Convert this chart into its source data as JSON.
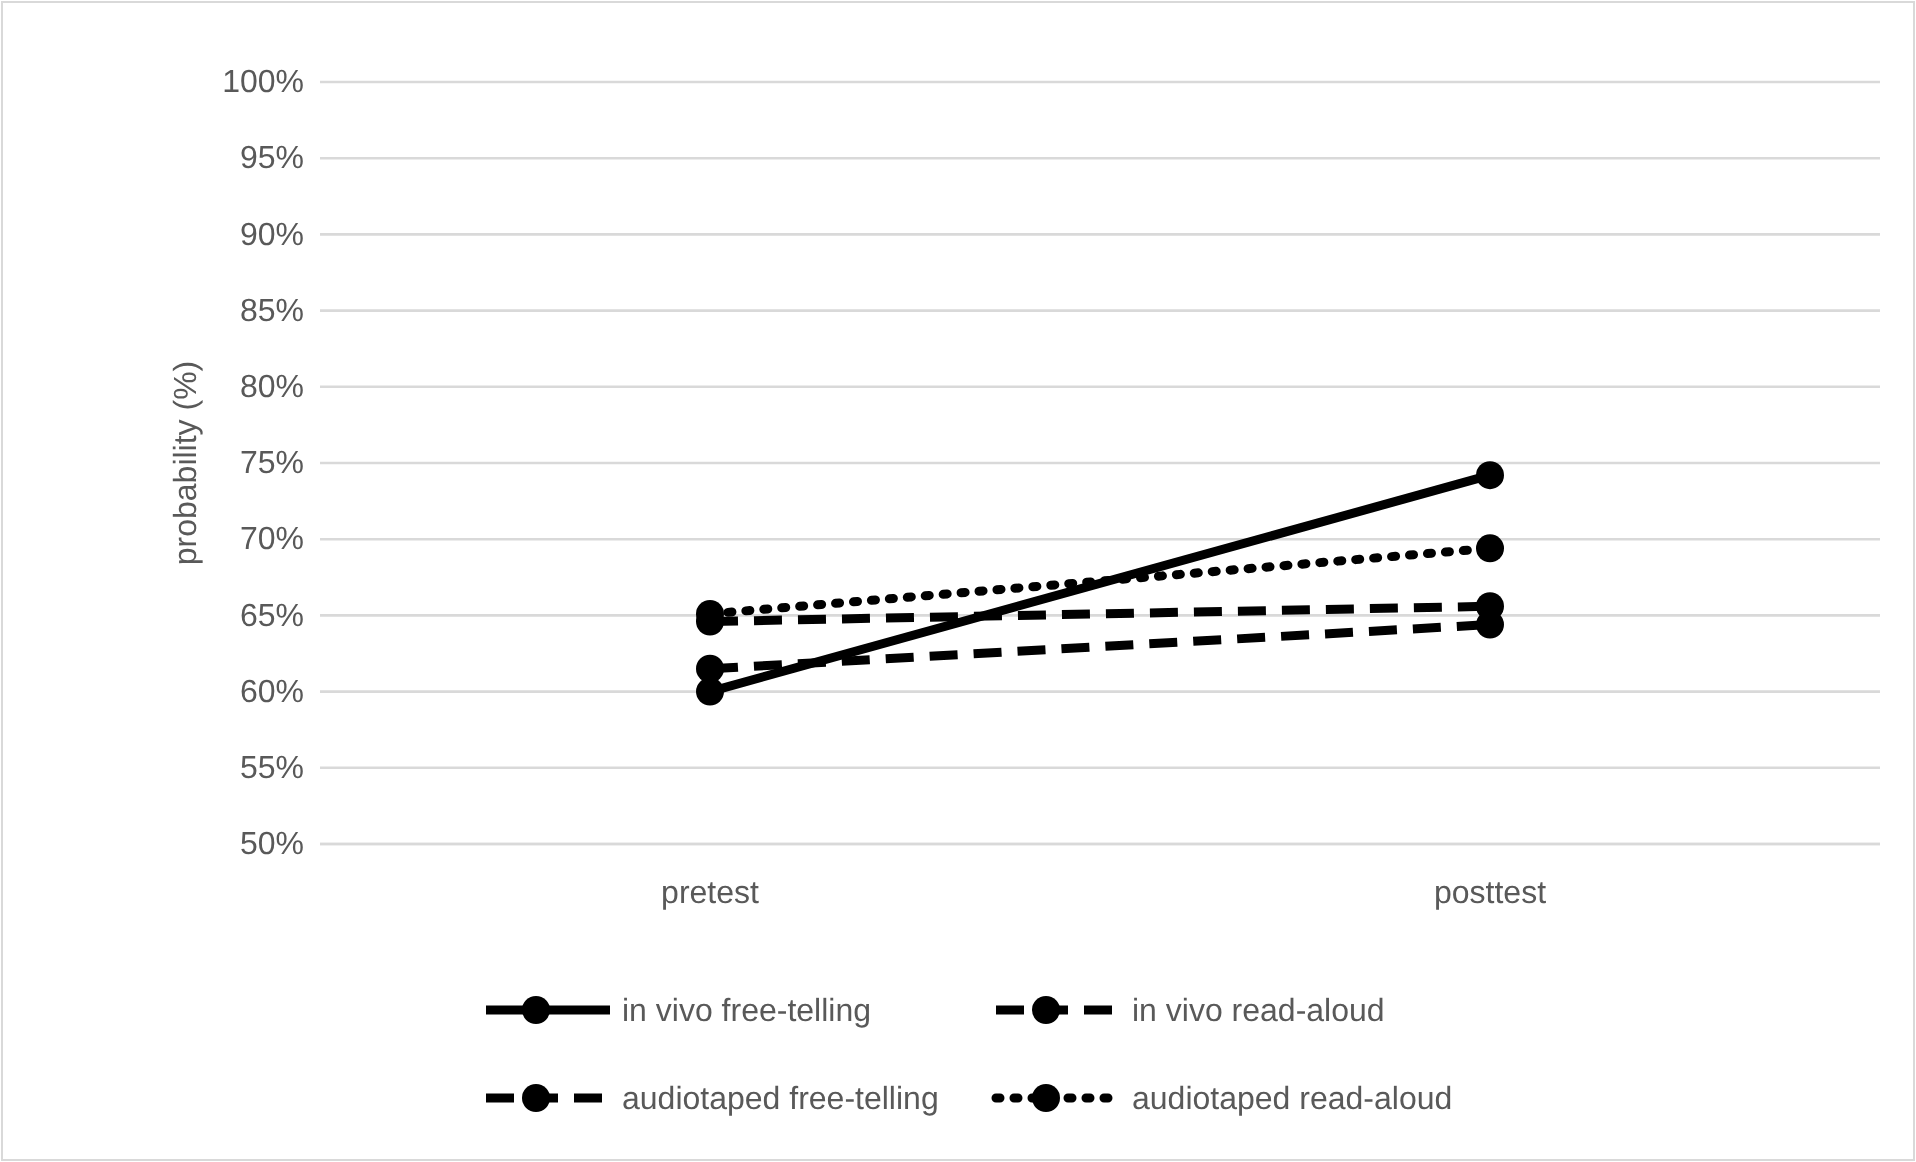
{
  "chart_data": {
    "type": "line",
    "ylabel": "probability (%)",
    "categories": [
      "pretest",
      "posttest"
    ],
    "series": [
      {
        "name": "in vivo free-telling",
        "color": "#000000",
        "line_style": "solid",
        "values": [
          60.0,
          74.2
        ]
      },
      {
        "name": "in vivo read-aloud",
        "color": "#000000",
        "line_style": "dashed",
        "values": [
          64.6,
          65.6
        ]
      },
      {
        "name": "audiotaped free-telling",
        "color": "#000000",
        "line_style": "dashed",
        "values": [
          61.5,
          64.4
        ]
      },
      {
        "name": "audiotaped read-aloud",
        "color": "#000000",
        "line_style": "dotted",
        "values": [
          65.1,
          69.4
        ]
      }
    ],
    "ylim": [
      50,
      100
    ],
    "yticks": [
      {
        "value": 50,
        "label": "50%"
      },
      {
        "value": 55,
        "label": "55%"
      },
      {
        "value": 60,
        "label": "60%"
      },
      {
        "value": 65,
        "label": "65%"
      },
      {
        "value": 70,
        "label": "70%"
      },
      {
        "value": 75,
        "label": "75%"
      },
      {
        "value": 80,
        "label": "80%"
      },
      {
        "value": 85,
        "label": "85%"
      },
      {
        "value": 90,
        "label": "90%"
      },
      {
        "value": 95,
        "label": "95%"
      },
      {
        "value": 100,
        "label": "100%"
      }
    ],
    "grid": "y",
    "legend": "bottom",
    "marker": "circle"
  }
}
